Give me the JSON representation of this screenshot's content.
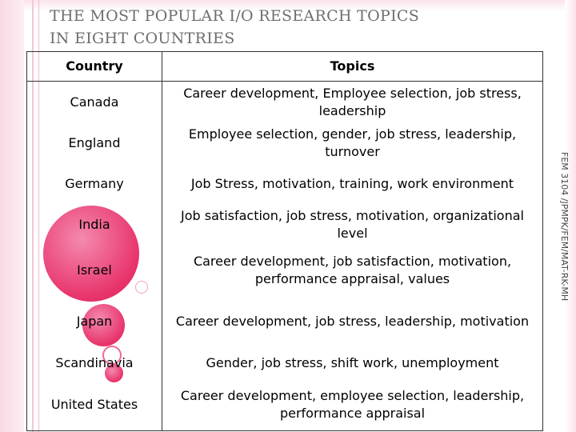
{
  "slide": {
    "title_lines": [
      "THE MOST POPULAR I/O RESEARCH TOPICS",
      "IN EIGHT COUNTRIES"
    ],
    "side_note": "FEM 3104 /JPMPK/FEM/MAT-RK-MH",
    "colors": {
      "accent": "#e8336b",
      "band": "#f9d9e3"
    }
  },
  "table": {
    "headers": [
      "Country",
      "Topics"
    ],
    "rows": [
      {
        "country": "Canada",
        "topics": "Career development, Employee selection, job stress, leadership"
      },
      {
        "country": "England",
        "topics": "Employee selection, gender, job stress, leadership, turnover"
      },
      {
        "country": "Germany",
        "topics": "Job Stress, motivation, training, work environment"
      },
      {
        "country": "India",
        "topics": "Job satisfaction, job stress, motivation, organizational level"
      },
      {
        "country": "Israel",
        "topics": "Career development, job satisfaction, motivation, performance appraisal, values"
      },
      {
        "country": "Japan",
        "topics": "Career development, job stress, leadership, motivation"
      },
      {
        "country": "Scandinavia",
        "topics": "Gender, job stress, shift work, unemployment"
      },
      {
        "country": "United States",
        "topics": "Career development, employee selection, leadership, performance appraisal"
      }
    ]
  }
}
